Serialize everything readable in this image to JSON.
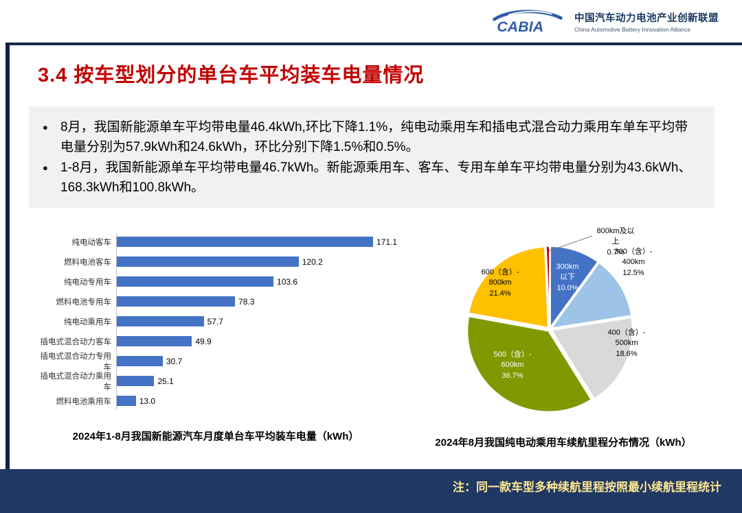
{
  "header": {
    "logo_text": "CABIA",
    "org_cn": "中国汽车动力电池产业创新联盟",
    "org_en": "China Automotive Battery Innovation Alliance"
  },
  "title": "3.4 按车型划分的单台车平均装车电量情况",
  "summary": {
    "bullet_char": "●",
    "bullets": [
      "8月，我国新能源单车平均带电量46.4kWh,环比下降1.1%，纯电动乘用车和插电式混合动力乘用车单车平均带电量分别为57.9kWh和24.6kWh，环比分别下降1.5%和0.5%。",
      "1-8月，我国新能源单车平均带电量46.7kWh。新能源乘用车、客车、专用车单车平均带电量分别为43.6kWh、168.3kWh和100.8kWh。"
    ]
  },
  "chart_data": [
    {
      "type": "bar",
      "orientation": "horizontal",
      "title": "2024年1-8月我国新能源汽车月度单台车平均装车电量（kWh）",
      "categories": [
        "纯电动客车",
        "燃料电池客车",
        "纯电动专用车",
        "燃料电池专用车",
        "纯电动乘用车",
        "插电式混合动力客车",
        "插电式混合动力专用车",
        "插电式混合动力乘用车",
        "燃料电池乘用车"
      ],
      "values": [
        171.1,
        120.2,
        103.6,
        78.3,
        57.7,
        49.9,
        30.7,
        25.1,
        13.0
      ],
      "xlim": [
        0,
        185
      ],
      "bar_color": "#4472C4",
      "grid": false,
      "legend": "none"
    },
    {
      "type": "pie",
      "title": "2024年8月我国纯电动乘用车续航里程分布情况（kWh）",
      "start_angle_deg": -90,
      "direction": "clockwise",
      "slices": [
        {
          "label": "300km以下",
          "label_lines": "300km\n以下",
          "value": 10.0,
          "pct": "10.0%",
          "color": "#4472C4"
        },
        {
          "label": "300（含）-400km",
          "label_lines": "300（含）-\n400km",
          "value": 12.5,
          "pct": "12.5%",
          "color": "#9DC3E6"
        },
        {
          "label": "400（含）-500km",
          "label_lines": "400（含）-\n500km",
          "value": 18.6,
          "pct": "18.6%",
          "color": "#D9D9D9"
        },
        {
          "label": "500（含）-600km",
          "label_lines": "500（含）-\n600km",
          "value": 36.7,
          "pct": "36.7%",
          "color": "#7F9A00"
        },
        {
          "label": "600（含）-800km",
          "label_lines": "600（含）-\n800km",
          "value": 21.4,
          "pct": "21.4%",
          "color": "#FFC000"
        },
        {
          "label": "800km及以上",
          "label_lines": "800km及以\n上",
          "value": 0.7,
          "pct": "0.7%",
          "color": "#C00000"
        }
      ]
    }
  ],
  "footer": {
    "note": "注：同一款车型多种续航里程按照最小续航里程统计"
  }
}
